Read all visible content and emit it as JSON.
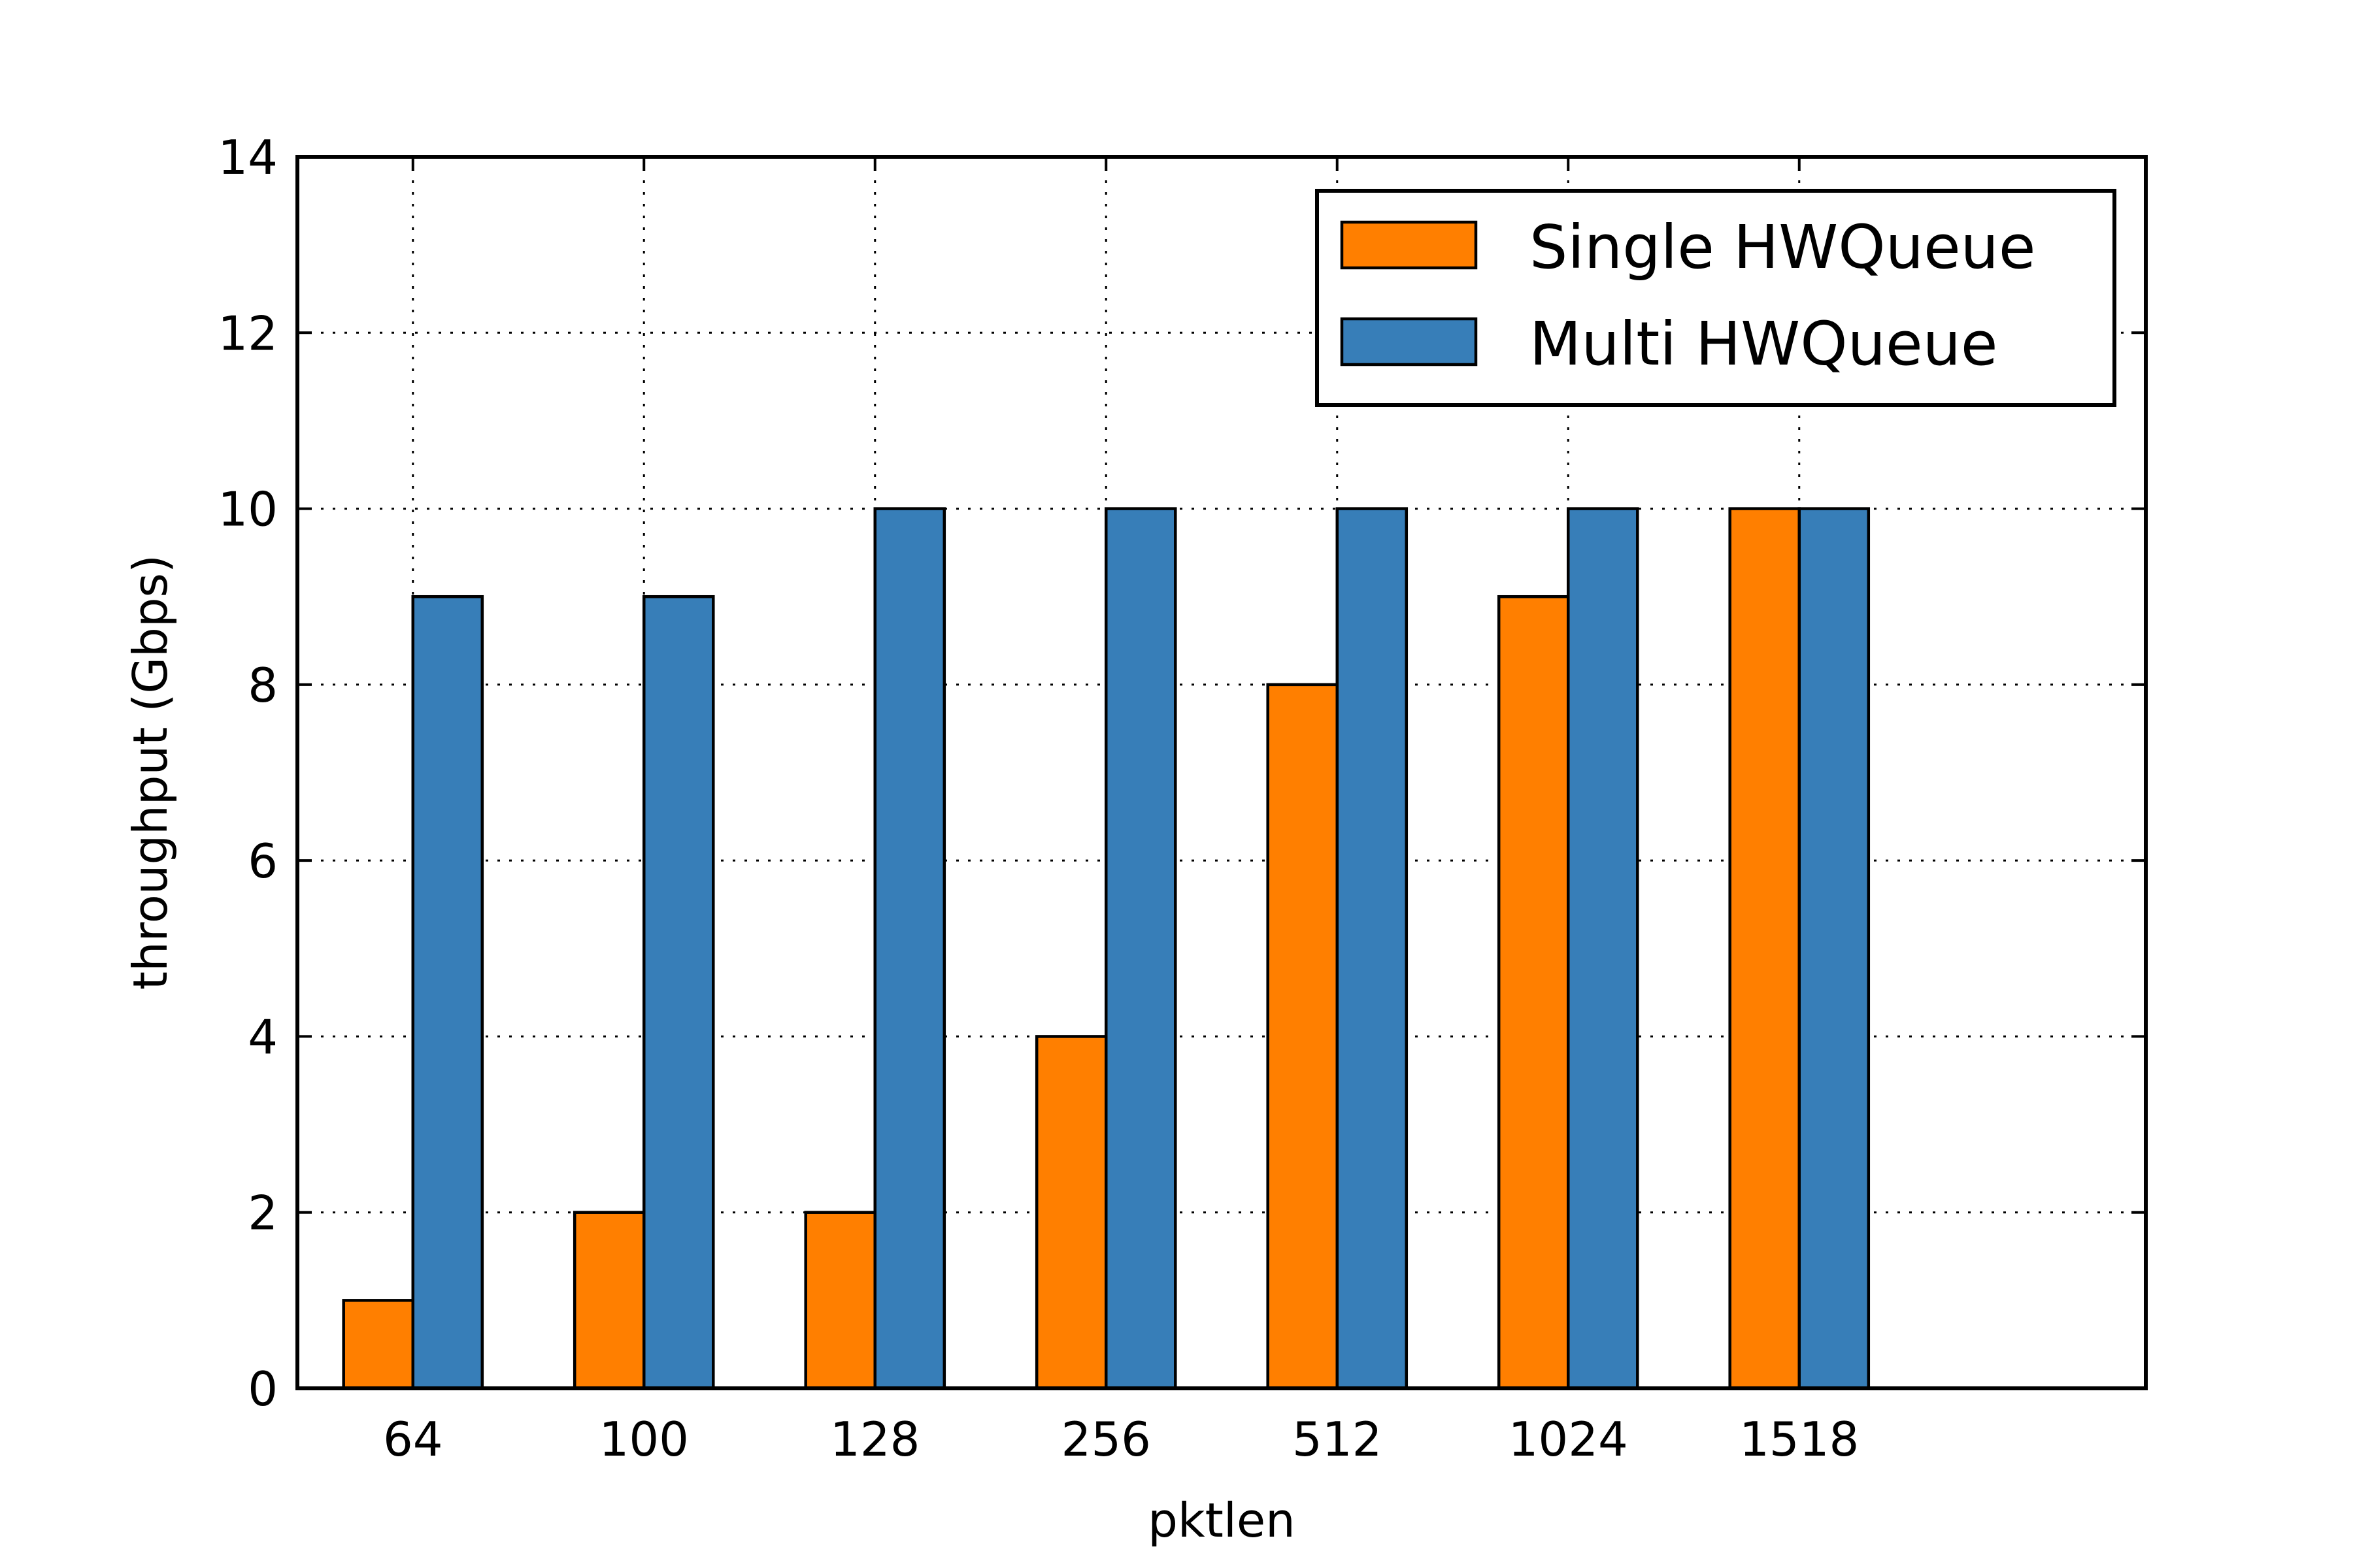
{
  "chart_data": {
    "type": "bar",
    "categories": [
      "64",
      "100",
      "128",
      "256",
      "512",
      "1024",
      "1518"
    ],
    "series": [
      {
        "name": "Single HWQueue",
        "color": "#ff7f00",
        "values": [
          1,
          2,
          2,
          4,
          8,
          9,
          10
        ]
      },
      {
        "name": "Multi HWQueue",
        "color": "#377eb8",
        "values": [
          9,
          9,
          10,
          10,
          10,
          10,
          10
        ]
      }
    ],
    "xlabel": "pktlen",
    "ylabel": "throughput (Gbps)",
    "ylim": [
      0,
      14
    ],
    "yticks": [
      "0",
      "2",
      "4",
      "6",
      "8",
      "10",
      "12",
      "14"
    ],
    "grid": true,
    "legend_position": "top-right"
  }
}
